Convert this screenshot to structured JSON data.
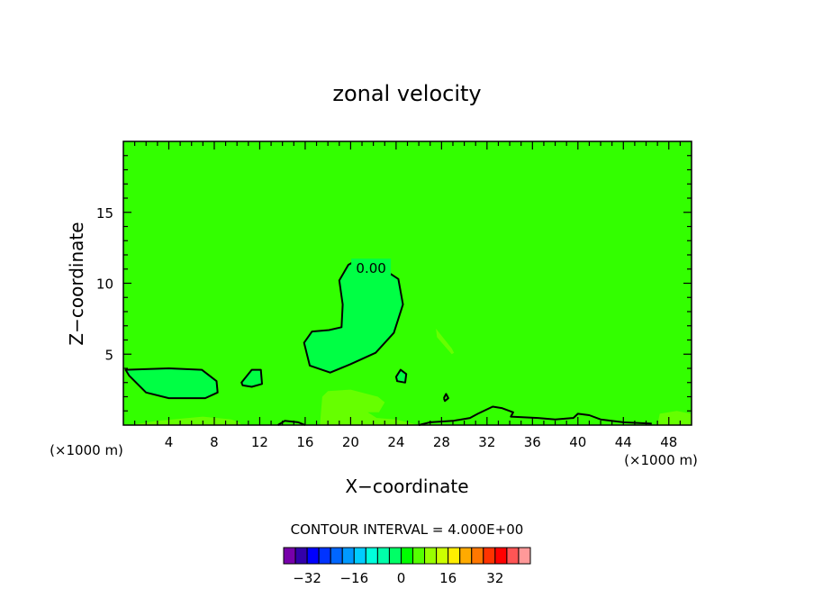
{
  "chart_data": {
    "type": "contour",
    "title": "zonal velocity",
    "xlabel": "X−coordinate",
    "ylabel": "Z−coordinate",
    "x_units_left": "(×1000 m)",
    "x_units_right": "(×1000 m)",
    "xlim": [
      0,
      50
    ],
    "ylim": [
      0,
      20
    ],
    "xticks": [
      4,
      8,
      12,
      16,
      20,
      24,
      28,
      32,
      36,
      40,
      44,
      48
    ],
    "yticks": [
      5,
      10,
      15
    ],
    "background_color": "#33ff00",
    "contour_interval_label": "CONTOUR INTERVAL = 4.000E+00",
    "contour_interval": 4.0,
    "contour_line_labels": [
      {
        "text": "0.00",
        "x": 21.8,
        "y": 11.1
      }
    ],
    "regions": [
      {
        "name": "upper-positive-cell",
        "color": "#00ff44",
        "outline": true,
        "points": [
          [
            20.5,
            11.6
          ],
          [
            22.5,
            11.2
          ],
          [
            24.2,
            10.3
          ],
          [
            24.6,
            8.5
          ],
          [
            23.8,
            6.5
          ],
          [
            22.2,
            5.1
          ],
          [
            20.0,
            4.3
          ],
          [
            18.2,
            3.7
          ],
          [
            16.4,
            4.2
          ],
          [
            15.9,
            5.8
          ],
          [
            16.6,
            6.6
          ],
          [
            18.1,
            6.7
          ],
          [
            19.2,
            6.9
          ],
          [
            19.3,
            8.5
          ],
          [
            19.0,
            10.2
          ],
          [
            19.8,
            11.3
          ]
        ]
      },
      {
        "name": "left-low-cell",
        "color": "#00ff44",
        "outline": true,
        "points": [
          [
            0.2,
            3.9
          ],
          [
            4.0,
            4.0
          ],
          [
            6.9,
            3.9
          ],
          [
            8.2,
            3.1
          ],
          [
            8.3,
            2.3
          ],
          [
            7.2,
            1.9
          ],
          [
            4.0,
            1.9
          ],
          [
            2.0,
            2.3
          ],
          [
            0.5,
            3.5
          ]
        ]
      },
      {
        "name": "small-cell-11km",
        "color": "#00ff44",
        "outline": true,
        "points": [
          [
            10.4,
            3.0
          ],
          [
            11.3,
            3.9
          ],
          [
            12.1,
            3.9
          ],
          [
            12.2,
            2.9
          ],
          [
            11.3,
            2.7
          ],
          [
            10.5,
            2.8
          ]
        ]
      },
      {
        "name": "small-cell-24km",
        "color": "#00ff44",
        "outline": true,
        "points": [
          [
            24.0,
            3.4
          ],
          [
            24.4,
            3.9
          ],
          [
            24.9,
            3.6
          ],
          [
            24.8,
            3.0
          ],
          [
            24.1,
            3.1
          ]
        ]
      },
      {
        "name": "sloped-streak-28km",
        "color": "#66ff00",
        "outline": false,
        "points": [
          [
            27.5,
            6.8
          ],
          [
            28.9,
            5.4
          ],
          [
            29.1,
            5.1
          ],
          [
            28.9,
            5.0
          ],
          [
            27.6,
            6.2
          ]
        ]
      },
      {
        "name": "surface-lower-band",
        "color": "#66ff00",
        "outline": false,
        "points": [
          [
            17.3,
            0.0
          ],
          [
            17.5,
            2.0
          ],
          [
            18.0,
            2.4
          ],
          [
            20.0,
            2.5
          ],
          [
            22.4,
            2.0
          ],
          [
            23.0,
            1.6
          ],
          [
            22.7,
            1.2
          ],
          [
            22.5,
            0.9
          ],
          [
            21.5,
            0.9
          ],
          [
            22.3,
            0.5
          ],
          [
            24.0,
            0.4
          ],
          [
            25.0,
            0.2
          ],
          [
            26.0,
            0.0
          ]
        ]
      },
      {
        "name": "surface-left-band",
        "color": "#66ff00",
        "outline": false,
        "points": [
          [
            0.6,
            0.0
          ],
          [
            3.0,
            0.3
          ],
          [
            7.0,
            0.6
          ],
          [
            9.5,
            0.4
          ],
          [
            10.2,
            0.2
          ],
          [
            10.4,
            0.0
          ]
        ]
      },
      {
        "name": "surface-right-band",
        "color": "#66ff00",
        "outline": false,
        "points": [
          [
            47.0,
            0.0
          ],
          [
            47.2,
            0.8
          ],
          [
            48.7,
            1.0
          ],
          [
            50.0,
            0.8
          ],
          [
            50.0,
            0.0
          ]
        ]
      }
    ],
    "contour_lines": [
      {
        "color": "#000000",
        "points": [
          [
            26.0,
            0.0
          ],
          [
            27.0,
            0.2
          ],
          [
            29.0,
            0.3
          ],
          [
            30.5,
            0.5
          ],
          [
            31.2,
            0.8
          ],
          [
            32.5,
            1.3
          ],
          [
            33.3,
            1.2
          ],
          [
            34.3,
            0.9
          ],
          [
            34.1,
            0.6
          ],
          [
            36.5,
            0.5
          ],
          [
            38.0,
            0.4
          ],
          [
            39.6,
            0.5
          ],
          [
            40.0,
            0.8
          ],
          [
            41.0,
            0.7
          ],
          [
            42.0,
            0.4
          ],
          [
            44.0,
            0.2
          ],
          [
            46.5,
            0.1
          ]
        ]
      },
      {
        "color": "#000000",
        "points": [
          [
            13.6,
            0.0
          ],
          [
            14.2,
            0.3
          ],
          [
            15.4,
            0.2
          ],
          [
            16.0,
            0.0
          ]
        ]
      },
      {
        "color": "#000000",
        "points": [
          [
            28.2,
            1.9
          ],
          [
            28.4,
            2.2
          ],
          [
            28.6,
            1.9
          ],
          [
            28.3,
            1.7
          ],
          [
            28.2,
            1.9
          ]
        ]
      }
    ],
    "colorbar": {
      "levels": [
        -36,
        -32,
        -28,
        -24,
        -20,
        -16,
        -12,
        -8,
        -4,
        0,
        4,
        8,
        12,
        16,
        20,
        24,
        28,
        32,
        36
      ],
      "colors": [
        "#7700aa",
        "#3300aa",
        "#0000ff",
        "#0033ff",
        "#0066ff",
        "#0099ff",
        "#00ccff",
        "#00ffdd",
        "#00ffaa",
        "#00ff66",
        "#00ff00",
        "#55ff00",
        "#99ff00",
        "#ccff00",
        "#ffee00",
        "#ffaa00",
        "#ff7700",
        "#ff3300",
        "#ff0000",
        "#ff5555",
        "#ff9999"
      ],
      "tick_labels": [
        "−32",
        "−16",
        "0",
        "16",
        "32"
      ],
      "tick_values": [
        -32,
        -16,
        0,
        16,
        32
      ]
    }
  }
}
